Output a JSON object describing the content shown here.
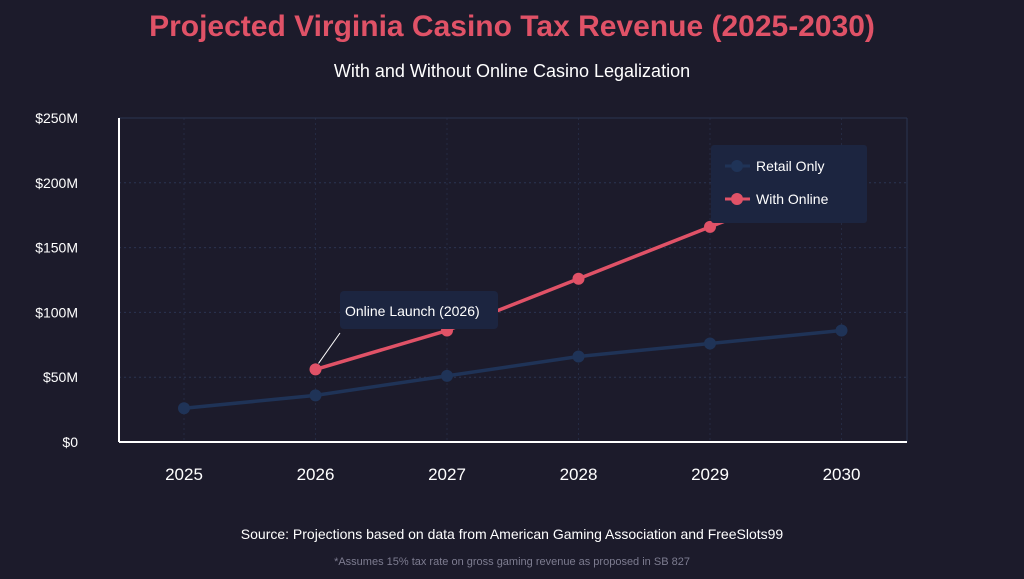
{
  "title": "Projected Virginia Casino Tax Revenue (2025-2030)",
  "subtitle": "With and Without Online Casino Legalization",
  "source": "Source: Projections based on data from American Gaming Association and FreeSlots99",
  "footnote": "*Assumes 15% tax rate on gross gaming revenue as proposed in SB 827",
  "colors": {
    "background": "#1c1b2b",
    "title": "#e05267",
    "retail": "#1f3357",
    "online": "#e05267",
    "legend_bg": "#1c2540",
    "grid": "#2a3452"
  },
  "chart_data": {
    "type": "line",
    "x": [
      "2025",
      "2026",
      "2027",
      "2028",
      "2029",
      "2030"
    ],
    "ylim": [
      0,
      250
    ],
    "yticks": [
      0,
      50,
      100,
      150,
      200,
      250
    ],
    "ytick_labels": [
      "$0",
      "$50M",
      "$100M",
      "$150M",
      "$200M",
      "$250M"
    ],
    "grid": true,
    "legend_position": "top-right",
    "series": [
      {
        "name": "Retail Only",
        "color": "#1f3357",
        "values": [
          26,
          36,
          51,
          66,
          76,
          86
        ]
      },
      {
        "name": "With Online",
        "color": "#e05267",
        "values": [
          null,
          56,
          86,
          126,
          166,
          206
        ]
      }
    ],
    "annotations": [
      {
        "text": "Online Launch (2026)",
        "x": "2026",
        "y": 56
      }
    ]
  }
}
